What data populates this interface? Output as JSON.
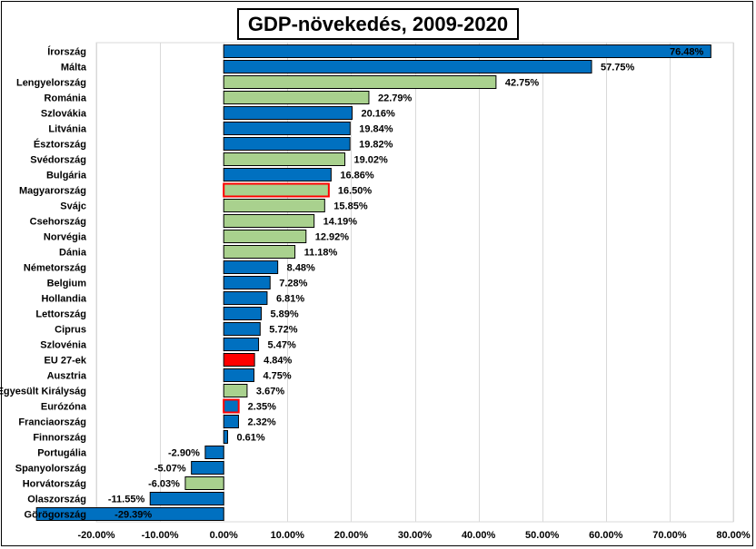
{
  "chart_data": {
    "type": "bar",
    "orientation": "horizontal",
    "title": "GDP-növekedés, 2009-2020",
    "xlabel": "",
    "ylabel": "",
    "xlim": [
      -20,
      80
    ],
    "tick_values": [
      -20,
      -10,
      0,
      10,
      20,
      30,
      40,
      50,
      60,
      70,
      80
    ],
    "tick_labels": [
      "-20.00%",
      "-10.00%",
      "0.00%",
      "10.00%",
      "20.00%",
      "30.00%",
      "40.00%",
      "50.00%",
      "60.00%",
      "70.00%",
      "80.00%"
    ],
    "grid": "vertical gridlines",
    "legend": "none",
    "colors": {
      "blue": "#0070C0",
      "green": "#A9D18E",
      "red": "#FF0000",
      "highlight_border": "#FF0000",
      "border": "#000000",
      "gridline": "#D9D9D9"
    },
    "categories": [
      "Írország",
      "Málta",
      "Lengyelország",
      "Románia",
      "Szlovákia",
      "Litvánia",
      "Észtország",
      "Svédország",
      "Bulgária",
      "Magyarország",
      "Svájc",
      "Csehország",
      "Norvégia",
      "Dánia",
      "Németország",
      "Belgium",
      "Hollandia",
      "Lettország",
      "Ciprus",
      "Szlovénia",
      "EU 27-ek",
      "Ausztria",
      "Egyesült Királyság",
      "Eurózóna",
      "Franciaország",
      "Finnország",
      "Portugália",
      "Spanyolország",
      "Horvátország",
      "Olaszország",
      "Görögország"
    ],
    "values": [
      76.48,
      57.75,
      42.75,
      22.79,
      20.16,
      19.84,
      19.82,
      19.02,
      16.86,
      16.5,
      15.85,
      14.19,
      12.92,
      11.18,
      8.48,
      7.28,
      6.81,
      5.89,
      5.72,
      5.47,
      4.84,
      4.75,
      3.67,
      2.35,
      2.32,
      0.61,
      -2.9,
      -5.07,
      -6.03,
      -11.55,
      -29.39
    ],
    "value_labels": [
      "76.48%",
      "57.75%",
      "42.75%",
      "22.79%",
      "20.16%",
      "19.84%",
      "19.82%",
      "19.02%",
      "16.86%",
      "16.50%",
      "15.85%",
      "14.19%",
      "12.92%",
      "11.18%",
      "8.48%",
      "7.28%",
      "6.81%",
      "5.89%",
      "5.72%",
      "5.47%",
      "4.84%",
      "4.75%",
      "3.67%",
      "2.35%",
      "2.32%",
      "0.61%",
      "-2.90%",
      "-5.07%",
      "-6.03%",
      "-11.55%",
      "-29.39%"
    ],
    "bar_colors": [
      "blue",
      "blue",
      "green",
      "green",
      "blue",
      "blue",
      "blue",
      "green",
      "blue",
      "green",
      "green",
      "green",
      "green",
      "green",
      "blue",
      "blue",
      "blue",
      "blue",
      "blue",
      "blue",
      "red",
      "blue",
      "green",
      "blue",
      "blue",
      "blue",
      "blue",
      "blue",
      "green",
      "blue",
      "blue"
    ],
    "highlighted": [
      "Magyarország",
      "Eurózóna"
    ]
  }
}
